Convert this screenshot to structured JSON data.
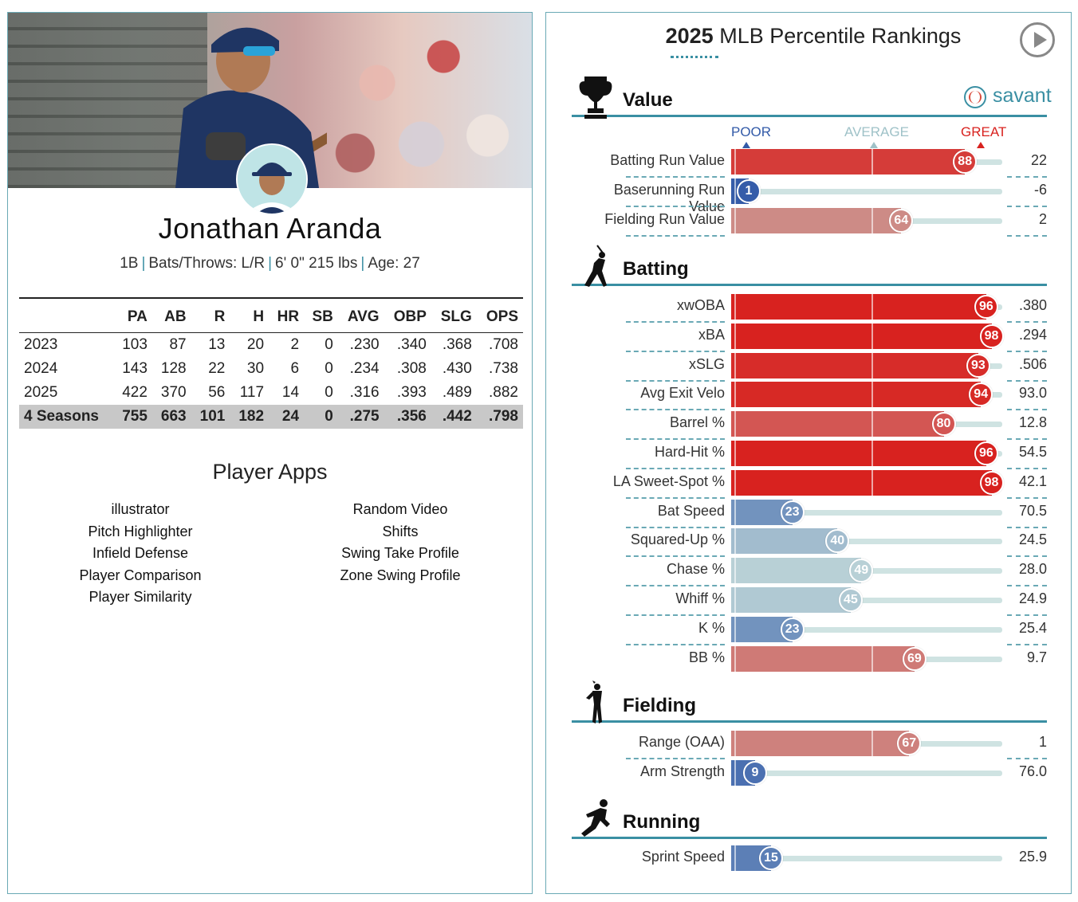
{
  "player": {
    "name": "Jonathan Aranda",
    "position": "1B",
    "bats_throws": "Bats/Throws: L/R",
    "height_weight": "6' 0\" 215 lbs",
    "age": "Age: 27"
  },
  "stats": {
    "headers": [
      "",
      "PA",
      "AB",
      "R",
      "H",
      "HR",
      "SB",
      "AVG",
      "OBP",
      "SLG",
      "OPS"
    ],
    "rows": [
      [
        "2023",
        "103",
        "87",
        "13",
        "20",
        "2",
        "0",
        ".230",
        ".340",
        ".368",
        ".708"
      ],
      [
        "2024",
        "143",
        "128",
        "22",
        "30",
        "6",
        "0",
        ".234",
        ".308",
        ".430",
        ".738"
      ],
      [
        "2025",
        "422",
        "370",
        "56",
        "117",
        "14",
        "0",
        ".316",
        ".393",
        ".489",
        ".882"
      ]
    ],
    "total": [
      "4 Seasons",
      "755",
      "663",
      "101",
      "182",
      "24",
      "0",
      ".275",
      ".356",
      ".442",
      ".798"
    ]
  },
  "apps": {
    "title": "Player Apps",
    "left": [
      "illustrator",
      "Pitch Highlighter",
      "Infield Defense",
      "Player Comparison",
      "Player Similarity"
    ],
    "right": [
      "Random Video",
      "Shifts",
      "Swing Take Profile",
      "Zone Swing Profile"
    ]
  },
  "rankings": {
    "title_year": "2025",
    "title_rest": "MLB Percentile Rankings",
    "brand": "savant",
    "scale": {
      "poor": "POOR",
      "average": "AVERAGE",
      "great": "GREAT"
    },
    "colors": {
      "poor": "#325aa8",
      "great": "#d8221f",
      "accent": "#3a8fa3"
    },
    "sections": [
      {
        "label": "Value",
        "icon": "trophy-icon",
        "rows": [
          {
            "label": "Batting Run Value",
            "pct": 88,
            "value": "22"
          },
          {
            "label": "Baserunning Run Value",
            "pct": 1,
            "value": "-6"
          },
          {
            "label": "Fielding Run Value",
            "pct": 64,
            "value": "2"
          }
        ]
      },
      {
        "label": "Batting",
        "icon": "batter-icon",
        "rows": [
          {
            "label": "xwOBA",
            "pct": 96,
            "value": ".380"
          },
          {
            "label": "xBA",
            "pct": 98,
            "value": ".294"
          },
          {
            "label": "xSLG",
            "pct": 93,
            "value": ".506"
          },
          {
            "label": "Avg Exit Velo",
            "pct": 94,
            "value": "93.0"
          },
          {
            "label": "Barrel %",
            "pct": 80,
            "value": "12.8"
          },
          {
            "label": "Hard-Hit %",
            "pct": 96,
            "value": "54.5"
          },
          {
            "label": "LA Sweet-Spot %",
            "pct": 98,
            "value": "42.1"
          },
          {
            "label": "Bat Speed",
            "pct": 23,
            "value": "70.5"
          },
          {
            "label": "Squared-Up %",
            "pct": 40,
            "value": "24.5"
          },
          {
            "label": "Chase %",
            "pct": 49,
            "value": "28.0"
          },
          {
            "label": "Whiff %",
            "pct": 45,
            "value": "24.9"
          },
          {
            "label": "K %",
            "pct": 23,
            "value": "25.4"
          },
          {
            "label": "BB %",
            "pct": 69,
            "value": "9.7"
          }
        ]
      },
      {
        "label": "Fielding",
        "icon": "fielder-icon",
        "rows": [
          {
            "label": "Range (OAA)",
            "pct": 67,
            "value": "1"
          },
          {
            "label": "Arm Strength",
            "pct": 9,
            "value": "76.0"
          }
        ]
      },
      {
        "label": "Running",
        "icon": "runner-icon",
        "rows": [
          {
            "label": "Sprint Speed",
            "pct": 15,
            "value": "25.9"
          }
        ]
      }
    ]
  }
}
